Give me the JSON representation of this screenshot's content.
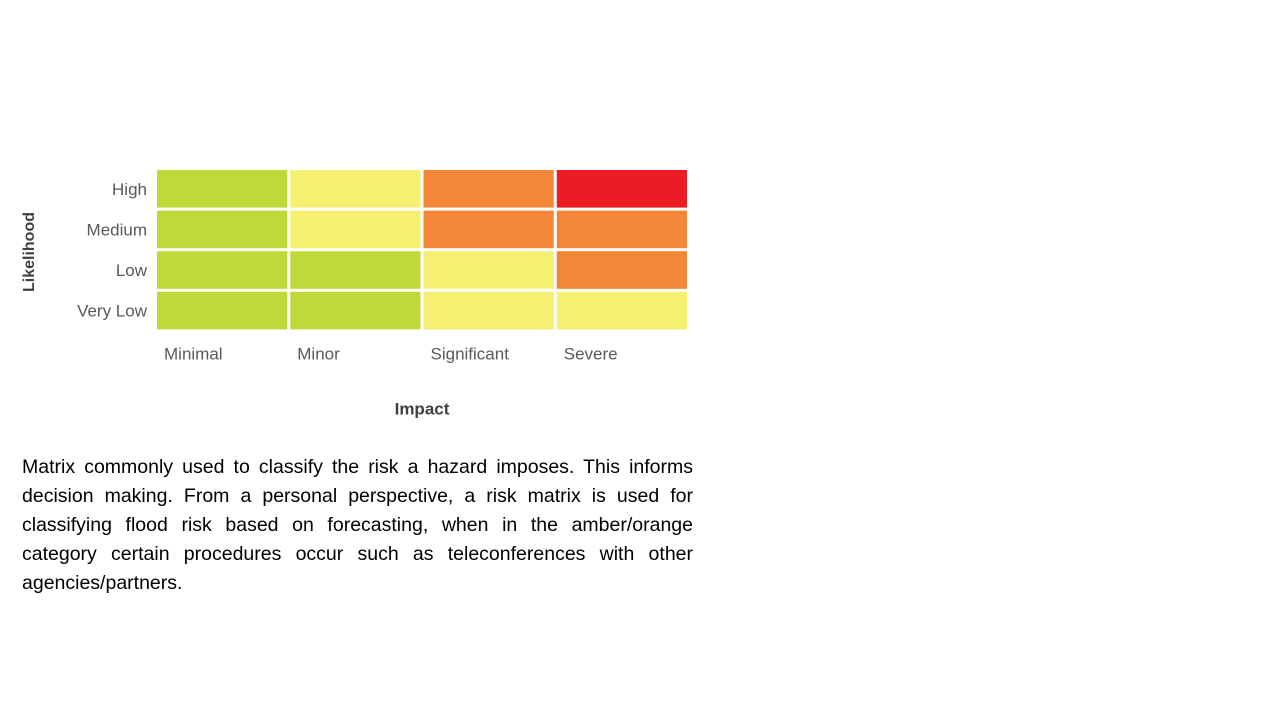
{
  "matrix": {
    "y_label": "Likelihood",
    "x_label": "Impact",
    "rows": [
      "High",
      "Medium",
      "Low",
      "Very Low"
    ],
    "columns": [
      "Minimal",
      "Minor",
      "Significant",
      "Severe"
    ],
    "cell_colors": [
      [
        "#c0d93a",
        "#f5ef72",
        "#f48637",
        "#ec1c24"
      ],
      [
        "#c0d93a",
        "#f5ef72",
        "#f48637",
        "#f48637"
      ],
      [
        "#c0d93a",
        "#c0d93a",
        "#f5ef72",
        "#f48637"
      ],
      [
        "#c0d93a",
        "#c0d93a",
        "#f5ef72",
        "#f5ef72"
      ]
    ]
  },
  "caption": "Matrix commonly used to classify the risk a hazard imposes. This informs decision making. From a personal perspective, a risk matrix is used for classifying flood risk based on forecasting, when in the amber/orange category certain procedures occur such as teleconferences with other agencies/partners."
}
